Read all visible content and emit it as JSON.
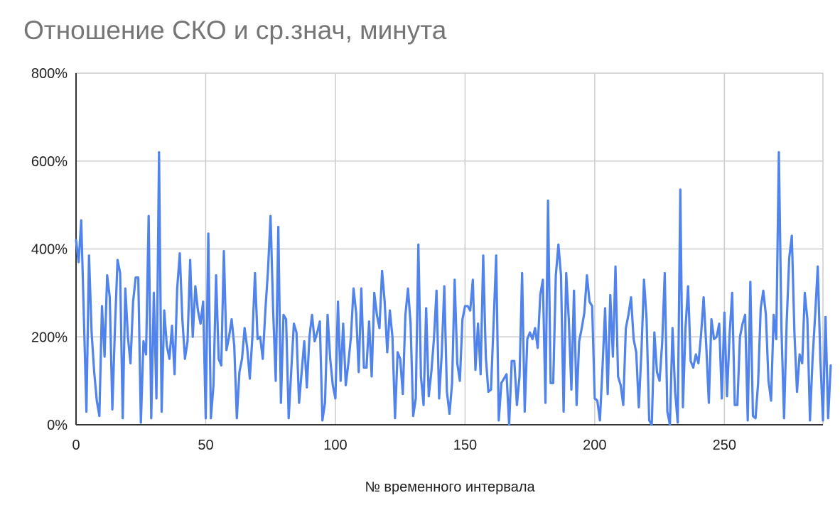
{
  "chart_data": {
    "type": "line",
    "title": "Отношение СКО и ср.знач, минута",
    "xlabel": "№ временного интервала",
    "ylabel": "",
    "xlim": [
      0,
      288
    ],
    "ylim": [
      0,
      800
    ],
    "x_ticks": [
      0,
      50,
      100,
      150,
      200,
      250
    ],
    "x_tick_labels": [
      "0",
      "50",
      "100",
      "150",
      "200",
      "250"
    ],
    "y_ticks": [
      0,
      200,
      400,
      600,
      800
    ],
    "y_tick_labels": [
      "0%",
      "200%",
      "400%",
      "600%",
      "800%"
    ],
    "grid": true,
    "legend": "none",
    "colors": {
      "line": "#5083EC",
      "grid": "#CCCCCC",
      "axis": "#333333",
      "title": "#757575"
    },
    "series": [
      {
        "values": [
          420,
          370,
          465,
          250,
          30,
          385,
          210,
          120,
          55,
          20,
          270,
          155,
          340,
          290,
          35,
          220,
          375,
          345,
          15,
          310,
          200,
          140,
          280,
          335,
          335,
          5,
          190,
          160,
          475,
          15,
          300,
          60,
          620,
          30,
          260,
          180,
          150,
          225,
          115,
          310,
          390,
          240,
          150,
          190,
          375,
          200,
          315,
          260,
          230,
          280,
          15,
          435,
          15,
          90,
          340,
          150,
          135,
          395,
          170,
          200,
          240,
          180,
          15,
          120,
          150,
          220,
          175,
          105,
          200,
          345,
          195,
          200,
          150,
          260,
          350,
          475,
          260,
          100,
          450,
          50,
          250,
          240,
          15,
          125,
          230,
          210,
          50,
          120,
          190,
          85,
          200,
          250,
          190,
          210,
          235,
          10,
          50,
          250,
          150,
          90,
          60,
          280,
          100,
          230,
          90,
          140,
          200,
          310,
          255,
          120,
          310,
          130,
          130,
          235,
          110,
          300,
          250,
          220,
          350,
          280,
          165,
          260,
          200,
          15,
          165,
          150,
          70,
          250,
          310,
          230,
          20,
          60,
          410,
          110,
          45,
          265,
          65,
          120,
          195,
          305,
          60,
          160,
          315,
          75,
          25,
          95,
          330,
          140,
          100,
          240,
          270,
          270,
          260,
          330,
          125,
          230,
          115,
          385,
          155,
          75,
          80,
          230,
          385,
          10,
          95,
          105,
          115,
          0,
          145,
          145,
          45,
          110,
          345,
          30,
          195,
          210,
          195,
          220,
          175,
          295,
          330,
          50,
          510,
          95,
          95,
          340,
          410,
          340,
          30,
          345,
          240,
          80,
          305,
          45,
          190,
          220,
          255,
          340,
          280,
          270,
          60,
          55,
          10,
          130,
          265,
          70,
          295,
          155,
          360,
          110,
          90,
          45,
          220,
          250,
          290,
          195,
          165,
          40,
          165,
          330,
          240,
          10,
          0,
          210,
          120,
          100,
          185,
          345,
          30,
          0,
          220,
          75,
          5,
          535,
          40,
          220,
          315,
          145,
          130,
          160,
          140,
          205,
          290,
          180,
          50,
          240,
          195,
          200,
          230,
          60,
          255,
          65,
          205,
          300,
          45,
          45,
          200,
          230,
          250,
          10,
          325,
          20,
          15,
          95,
          265,
          305,
          250,
          100,
          55,
          250,
          195,
          620,
          220,
          15,
          230,
          380,
          430,
          210,
          75,
          160,
          140,
          300,
          240,
          10,
          150,
          250,
          360,
          150,
          10,
          245,
          15,
          135
        ]
      }
    ]
  }
}
